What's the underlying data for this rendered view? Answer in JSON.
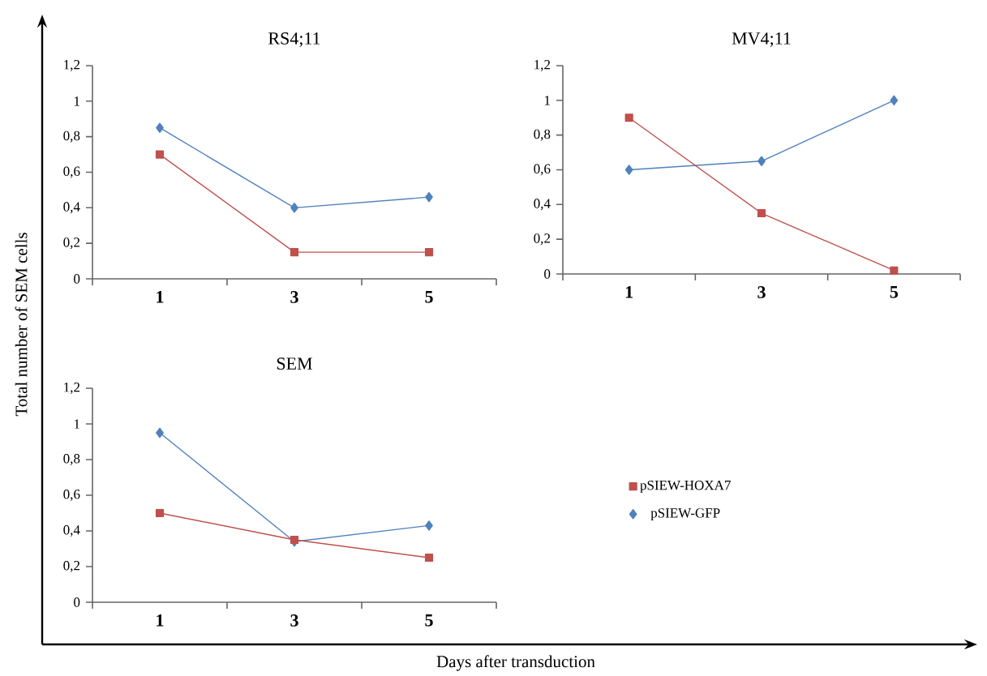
{
  "chart_data": [
    {
      "type": "line",
      "title": "RS4;11",
      "xlabel": "Days after transduction",
      "ylabel": "Total number of SEM cells",
      "categories": [
        "1",
        "3",
        "5"
      ],
      "ylim": [
        0,
        1.2
      ],
      "yticks": [
        0,
        {
          "value": 0.2,
          "label": "0,2"
        },
        {
          "value": 0.4,
          "label": "0,4"
        },
        {
          "value": 0.6,
          "label": "0,6"
        },
        {
          "value": 0.8,
          "label": "0,8"
        },
        1,
        {
          "value": 1.2,
          "label": "1,2"
        }
      ],
      "series": [
        {
          "color": "#c0504d",
          "marker": "square",
          "values": [
            0.7,
            0.15,
            0.15
          ]
        },
        {
          "color": "#4f81bd",
          "marker": "diamond",
          "values": [
            0.85,
            0.4,
            0.46
          ]
        }
      ]
    },
    {
      "type": "line",
      "title": "MV4;11",
      "categories": [
        "1",
        "3",
        "5"
      ],
      "ylim": [
        0,
        1.2
      ],
      "yticks": [
        0,
        {
          "value": 0.2,
          "label": "0,2"
        },
        {
          "value": 0.4,
          "label": "0,4"
        },
        {
          "value": 0.6,
          "label": "0,6"
        },
        {
          "value": 0.8,
          "label": "0,8"
        },
        1,
        {
          "value": 1.2,
          "label": "1,2"
        }
      ],
      "series": [
        {
          "color": "#c0504d",
          "marker": "square",
          "values": [
            0.9,
            0.35,
            0.02
          ]
        },
        {
          "color": "#4f81bd",
          "marker": "diamond",
          "values": [
            0.6,
            0.65,
            1.0
          ]
        }
      ]
    },
    {
      "type": "line",
      "title": "SEM",
      "categories": [
        "1",
        "3",
        "5"
      ],
      "ylim": [
        0,
        1.2
      ],
      "yticks": [
        0,
        {
          "value": 0.2,
          "label": "0,2"
        },
        {
          "value": 0.4,
          "label": "0,4"
        },
        {
          "value": 0.6,
          "label": "0,6"
        },
        {
          "value": 0.8,
          "label": "0,8"
        },
        1,
        {
          "value": 1.2,
          "label": "1,2"
        }
      ],
      "legend": "right",
      "series": [
        {
          "name": "pSIEW-HOXA7",
          "color": "#c0504d",
          "marker": "square",
          "values": [
            0.5,
            0.35,
            0.25
          ]
        },
        {
          "name": "pSIEW-GFP",
          "color": "#4f81bd",
          "marker": "diamond",
          "values": [
            0.95,
            0.34,
            0.43
          ]
        }
      ]
    }
  ]
}
